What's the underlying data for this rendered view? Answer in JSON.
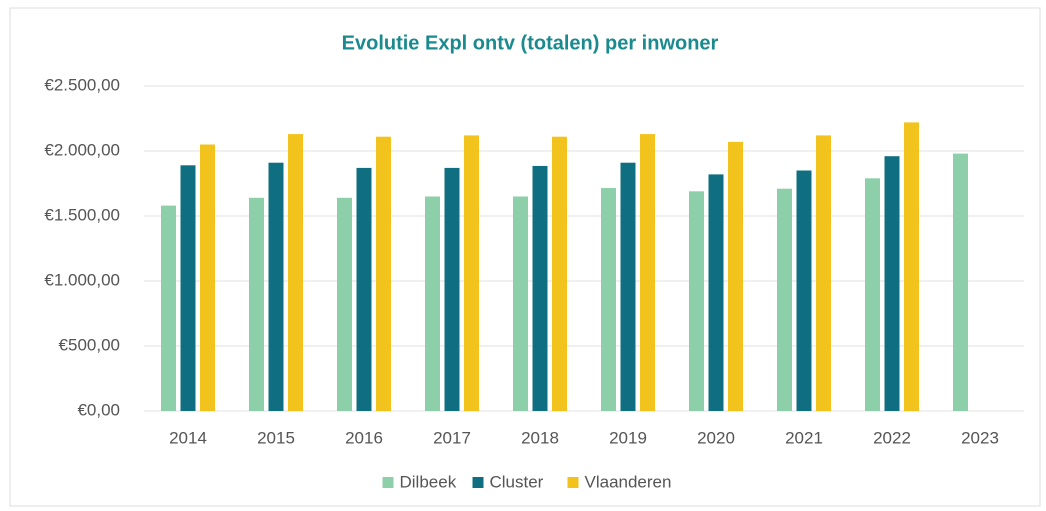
{
  "chart_data": {
    "type": "bar",
    "title": "Evolutie Expl ontv (totalen) per inwoner",
    "categories": [
      "2014",
      "2015",
      "2016",
      "2017",
      "2018",
      "2019",
      "2020",
      "2021",
      "2022",
      "2023"
    ],
    "series": [
      {
        "name": "Dilbeek",
        "color": "#8dcfa9",
        "values": [
          1580,
          1640,
          1640,
          1650,
          1650,
          1715,
          1690,
          1710,
          1790,
          1980
        ]
      },
      {
        "name": "Cluster",
        "color": "#0f6f80",
        "values": [
          1890,
          1910,
          1870,
          1870,
          1885,
          1910,
          1820,
          1850,
          1960,
          null
        ]
      },
      {
        "name": "Vlaanderen",
        "color": "#f2c31c",
        "values": [
          2050,
          2130,
          2110,
          2120,
          2110,
          2130,
          2070,
          2120,
          2220,
          null
        ]
      }
    ],
    "ylim": [
      0,
      2500
    ],
    "yticks": [
      {
        "value": 0,
        "label": "€0,00"
      },
      {
        "value": 500,
        "label": "€500,00"
      },
      {
        "value": 1000,
        "label": "€1.000,00"
      },
      {
        "value": 1500,
        "label": "€1.500,00"
      },
      {
        "value": 2000,
        "label": "€2.000,00"
      },
      {
        "value": 2500,
        "label": "€2.500,00"
      }
    ],
    "grid": true,
    "legend": "bottom"
  }
}
